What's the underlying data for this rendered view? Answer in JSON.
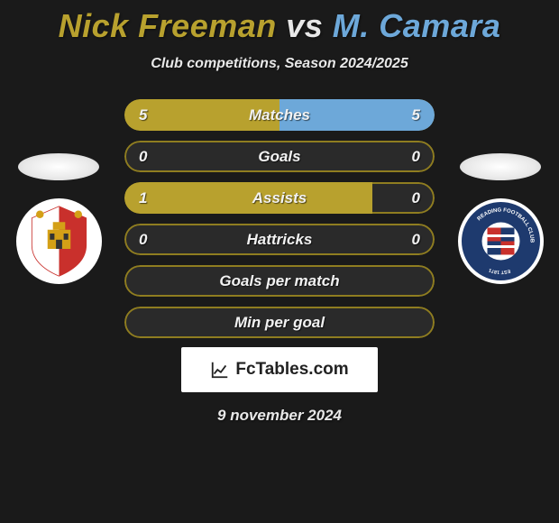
{
  "title": {
    "player1": "Nick Freeman",
    "player2": "M. Camara",
    "player1_color": "#b8a12e",
    "player2_color": "#6da8d9",
    "vs_color": "#e8e8e8"
  },
  "subtitle": "Club competitions, Season 2024/2025",
  "date": "9 november 2024",
  "brand": "FcTables.com",
  "colors": {
    "background": "#1a1a1a",
    "bar_left_primary": "#b8a12e",
    "bar_right_primary": "#6da8d9",
    "bar_border": "#8f7d20",
    "bar_empty": "#2a2a2a"
  },
  "stats": [
    {
      "label": "Matches",
      "left_value": "5",
      "right_value": "5",
      "left_pct": 50,
      "right_pct": 50,
      "left_color": "#b8a12e",
      "right_color": "#6da8d9",
      "border_color": "#8f7d20"
    },
    {
      "label": "Goals",
      "left_value": "0",
      "right_value": "0",
      "left_pct": 0,
      "right_pct": 0,
      "left_color": "#b8a12e",
      "right_color": "#6da8d9",
      "border_color": "#8f7d20"
    },
    {
      "label": "Assists",
      "left_value": "1",
      "right_value": "0",
      "left_pct": 80,
      "right_pct": 0,
      "left_color": "#b8a12e",
      "right_color": "#6da8d9",
      "border_color": "#8f7d20"
    },
    {
      "label": "Hattricks",
      "left_value": "0",
      "right_value": "0",
      "left_pct": 0,
      "right_pct": 0,
      "left_color": "#b8a12e",
      "right_color": "#6da8d9",
      "border_color": "#8f7d20"
    },
    {
      "label": "Goals per match",
      "left_value": "",
      "right_value": "",
      "left_pct": 0,
      "right_pct": 0,
      "left_color": "#b8a12e",
      "right_color": "#6da8d9",
      "border_color": "#8f7d20"
    },
    {
      "label": "Min per goal",
      "left_value": "",
      "right_value": "",
      "left_pct": 0,
      "right_pct": 0,
      "left_color": "#b8a12e",
      "right_color": "#6da8d9",
      "border_color": "#8f7d20"
    }
  ]
}
